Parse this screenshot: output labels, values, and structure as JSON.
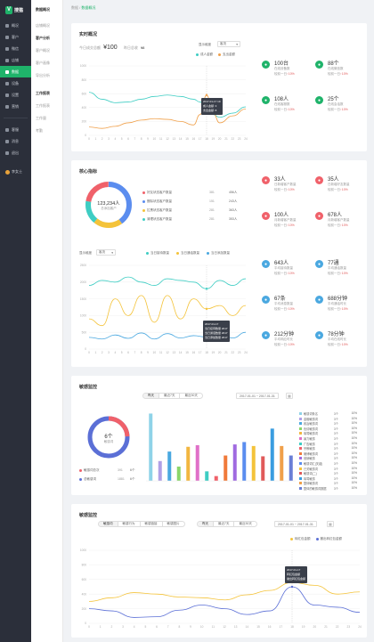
{
  "app": {
    "logo_letter": "V",
    "logo_text": "搜猫"
  },
  "sidebar": {
    "items": [
      {
        "label": "概况",
        "icon": "home-icon"
      },
      {
        "label": "客户",
        "icon": "user-icon"
      },
      {
        "label": "微信",
        "icon": "wechat-icon"
      },
      {
        "label": "店铺",
        "icon": "store-icon"
      },
      {
        "label": "数据",
        "icon": "chart-icon",
        "active": true
      },
      {
        "label": "设备",
        "icon": "device-icon"
      },
      {
        "label": "设置",
        "icon": "gear-icon"
      },
      {
        "label": "营销",
        "icon": "megaphone-icon"
      }
    ],
    "items2": [
      {
        "label": "客服",
        "icon": "headset-icon"
      },
      {
        "label": "消息",
        "icon": "message-icon"
      },
      {
        "label": "退出",
        "icon": "logout-icon"
      }
    ],
    "user": "李女士"
  },
  "subnav": {
    "header": "数据概况",
    "items": [
      {
        "label": "店铺概况"
      },
      {
        "label": "客户分析",
        "active": true
      },
      {
        "label": "客户概况"
      },
      {
        "label": "客户画像"
      },
      {
        "label": "导出分析"
      }
    ],
    "section2": "工作报表",
    "items2": [
      {
        "label": "工作报表"
      },
      {
        "label": "工作量"
      },
      {
        "label": "考勤"
      }
    ]
  },
  "breadcrumb": {
    "root": "数据",
    "sep": " / ",
    "current": "数据概况"
  },
  "realtime": {
    "title": "实时概况",
    "today_label": "今日成交总额",
    "today_value": "¥100",
    "orders_label": "昨日总收",
    "orders_value": "¥8",
    "select_label": "显示维度",
    "select_value": "客流",
    "legend": [
      "成人金额",
      "支出金额"
    ],
    "legend_colors": [
      "#3ecdc3",
      "#f0a04a"
    ],
    "tooltip": {
      "title": "2017-01-17 19",
      "l1": "成人金额: 3",
      "l2": "支出金额: 8"
    },
    "stats": [
      {
        "value": "100台",
        "label": "在线设备数",
        "change": "较前一日",
        "delta": "↑10%",
        "color": "#1fb36a",
        "icon": "device-icon"
      },
      {
        "value": "88个",
        "label": "在线微信数",
        "change": "较前一日",
        "delta": "↑10%",
        "color": "#1fb36a",
        "icon": "wechat-icon"
      },
      {
        "value": "108人",
        "label": "在线客服数",
        "change": "较前一日",
        "delta": "↑10%",
        "color": "#1fb36a",
        "icon": "headset-icon"
      },
      {
        "value": "25个",
        "label": "在线会话数",
        "change": "较前一日",
        "delta": "↑10%",
        "color": "#1fb36a",
        "icon": "message-icon"
      }
    ]
  },
  "core": {
    "title": "核心指标",
    "donut_value": "123,234人",
    "donut_label": "总添加客户",
    "rows": [
      {
        "name": "好友状态客户数量",
        "n": "381",
        "v": "456人",
        "color": "#f0616a"
      },
      {
        "name": "删除状态客户数量",
        "n": "151",
        "v": "243人",
        "color": "#5b8def"
      },
      {
        "name": "拉黑状态客户数量",
        "n": "281",
        "v": "363人",
        "color": "#f4c33a"
      },
      {
        "name": "清理状态客户数量",
        "n": "281",
        "v": "353人",
        "color": "#3ecdc3"
      }
    ],
    "stats": [
      {
        "value": "33人",
        "label": "日新增客户数量",
        "change": "较前一日",
        "delta": "↑10%",
        "color": "#f0616a",
        "icon": "user-icon"
      },
      {
        "value": "35人",
        "label": "日新增好友数量",
        "change": "较前一日",
        "delta": "↑10%",
        "color": "#f0616a",
        "icon": "user-icon"
      },
      {
        "value": "100人",
        "label": "月新增客户数量",
        "change": "较前一日",
        "delta": "↑10%",
        "color": "#f0616a",
        "icon": "calendar-icon"
      },
      {
        "value": "678人",
        "label": "月新增客户数量",
        "change": "较前一日",
        "delta": "↑10%",
        "color": "#f0616a",
        "icon": "calendar-icon"
      }
    ],
    "select_label": "显示维度",
    "select_value": "客流",
    "legend": [
      "当日接待数量",
      "当日通话数量",
      "当日添加数量"
    ],
    "legend_colors": [
      "#3ecdc3",
      "#f4c33a",
      "#4aa8e0"
    ],
    "tooltip": {
      "title": "2017-01-17",
      "l1": "当日接待数量",
      "l1v": "2017",
      "l2": "当日通话数量",
      "l2v": "2017",
      "l3": "当日添加数量",
      "l3v": "2017"
    },
    "stats2": [
      {
        "value": "643人",
        "label": "平均接待数量",
        "change": "较前一日",
        "delta": "↑10%",
        "color": "#4aa8e0",
        "icon": "chat-icon"
      },
      {
        "value": "77通",
        "label": "平均通话数量",
        "change": "较前一日",
        "delta": "↑10%",
        "color": "#4aa8e0",
        "icon": "phone-icon"
      },
      {
        "value": "67条",
        "label": "平均消息数量",
        "change": "较前一日",
        "delta": "↑10%",
        "color": "#4aa8e0",
        "icon": "mail-icon"
      },
      {
        "value": "688分钟",
        "label": "平均通话时长",
        "change": "较前一日",
        "delta": "↑10%",
        "color": "#4aa8e0",
        "icon": "user-icon"
      },
      {
        "value": "212分钟",
        "label": "平均响应时长",
        "change": "较前一日",
        "delta": "↑10%",
        "color": "#4aa8e0",
        "icon": "clock-icon"
      },
      {
        "value": "78分钟",
        "label": "平均在线时长",
        "change": "较前一日",
        "delta": "↑10%",
        "color": "#4aa8e0",
        "icon": "user-icon"
      }
    ]
  },
  "sensitive": {
    "title": "敏感监控",
    "tabs": [
      "昨天",
      "最近7天",
      "最近30天"
    ],
    "date_range": "2017-01-01 ~ 2017-01-31",
    "cal_icon": "calendar-icon",
    "donut_value": "6个",
    "donut_label": "敏感词",
    "legend": [
      {
        "name": "敏感词总次",
        "n": "391",
        "v": "6个",
        "color": "#f0616a"
      },
      {
        "name": "总敏感词",
        "n": "1881",
        "v": "6个",
        "color": "#5b6fd6"
      }
    ],
    "bars": [
      {
        "name": "敏感词条名",
        "a": "3个",
        "b": "10%",
        "color": "#8fd3e8"
      },
      {
        "name": "金融敏感词",
        "a": "3个",
        "b": "10%",
        "color": "#b0a0e6"
      },
      {
        "name": "政治敏感词",
        "a": "3个",
        "b": "10%",
        "color": "#4aa8e0"
      },
      {
        "name": "色情敏感词",
        "a": "3个",
        "b": "10%",
        "color": "#8ad66a"
      },
      {
        "name": "辱骂敏感词",
        "a": "3个",
        "b": "10%",
        "color": "#f2b640"
      },
      {
        "name": "暴力敏感",
        "a": "3个",
        "b": "10%",
        "color": "#e070c8"
      },
      {
        "name": "广告敏感",
        "a": "3个",
        "b": "10%",
        "color": "#3ecdc3"
      },
      {
        "name": "宗教敏感",
        "a": "3个",
        "b": "10%",
        "color": "#f0616a"
      },
      {
        "name": "赌博敏感词",
        "a": "3个",
        "b": "10%",
        "color": "#f07a3a"
      },
      {
        "name": "营销敏感",
        "a": "3个",
        "b": "10%",
        "color": "#a06ae0"
      },
      {
        "name": "敏感词汇(关键)",
        "a": "3个",
        "b": "10%",
        "color": "#5b8def"
      },
      {
        "name": "已关敏感词",
        "a": "3个",
        "b": "10%",
        "color": "#f4c33a"
      },
      {
        "name": "敏感词(二)",
        "a": "3个",
        "b": "10%",
        "color": "#e05a5a"
      },
      {
        "name": "辱骂敏感",
        "a": "3个",
        "b": "10%",
        "color": "#3a9de0"
      },
      {
        "name": "整体敏感词",
        "a": "3个",
        "b": "10%",
        "color": "#f0a04a"
      },
      {
        "name": "整体的敏感词数据",
        "a": "3个",
        "b": "10%",
        "color": "#6a7fd6"
      }
    ]
  },
  "sensitive2": {
    "title": "敏感监控",
    "tabs1": [
      "敏感词",
      "敏感行为",
      "敏感链接",
      "敏感图片"
    ],
    "tabs2": [
      "昨天",
      "最近7天",
      "最近30天"
    ],
    "date_range": "2017-01-01 ~ 2017-01-31",
    "legend": [
      "转红包金额",
      "撤出转红包金额"
    ],
    "legend_colors": [
      "#f4c33a",
      "#5b6fd6"
    ],
    "tooltip": {
      "title": "2017-01-17",
      "l1": "转红包金额",
      "l2": "撤出转红包金额"
    }
  },
  "axis": {
    "xticks": [
      "0",
      "1",
      "2",
      "3",
      "4",
      "5",
      "6",
      "7",
      "8",
      "9",
      "10",
      "11",
      "12",
      "13",
      "14",
      "15",
      "16",
      "17",
      "18",
      "19",
      "20",
      "21",
      "22",
      "23",
      "24"
    ],
    "y1": [
      "0",
      "200",
      "400",
      "600",
      "800",
      "1000"
    ],
    "y2": [
      "0",
      "500",
      "1000",
      "1500",
      "2000",
      "2500"
    ],
    "y3": [
      "0",
      "200",
      "400",
      "600",
      "800",
      "1000"
    ]
  },
  "chart_data": [
    {
      "type": "line",
      "title": "实时概况",
      "x": [
        0,
        2,
        4,
        6,
        8,
        10,
        12,
        14,
        16,
        17,
        18,
        19,
        20,
        22,
        24
      ],
      "series": [
        {
          "name": "成人金额",
          "values": [
            620,
            520,
            470,
            480,
            520,
            560,
            580,
            560,
            520,
            480,
            380,
            300,
            260,
            320,
            410
          ]
        },
        {
          "name": "支出金额",
          "values": [
            120,
            100,
            130,
            180,
            220,
            240,
            230,
            200,
            150,
            300,
            580,
            320,
            180,
            280,
            380
          ]
        }
      ],
      "ylim": [
        0,
        1000
      ]
    },
    {
      "type": "line",
      "title": "核心指标",
      "x": [
        0,
        2,
        4,
        6,
        8,
        10,
        12,
        14,
        16,
        18,
        20,
        22,
        24
      ],
      "series": [
        {
          "name": "当日接待数量",
          "values": [
            1900,
            2050,
            2000,
            2150,
            2000,
            1900,
            2100,
            2050,
            2000,
            1800,
            2050,
            1900,
            2100
          ]
        },
        {
          "name": "当日通话数量",
          "values": [
            900,
            700,
            1500,
            1000,
            1600,
            800,
            1600,
            900,
            1500,
            1200,
            1300,
            1000,
            1300
          ]
        },
        {
          "name": "当日添加数量",
          "values": [
            350,
            300,
            420,
            320,
            480,
            300,
            460,
            330,
            400,
            360,
            500,
            330,
            500
          ]
        }
      ],
      "ylim": [
        0,
        2500
      ]
    },
    {
      "type": "bar",
      "title": "敏感监控",
      "values": [
        850,
        250,
        370,
        180,
        430,
        450,
        120,
        60,
        320,
        460,
        490,
        440,
        310,
        660,
        440,
        320
      ]
    },
    {
      "type": "line",
      "title": "敏感监控",
      "x": [
        0,
        2,
        4,
        6,
        8,
        10,
        12,
        14,
        16,
        18,
        20,
        22,
        24
      ],
      "series": [
        {
          "name": "转红包金额",
          "values": [
            300,
            350,
            420,
            400,
            360,
            350,
            320,
            390,
            450,
            560,
            520,
            400,
            430
          ]
        },
        {
          "name": "撤出转红包金额",
          "values": [
            200,
            170,
            80,
            90,
            180,
            250,
            200,
            120,
            170,
            500,
            250,
            220,
            150
          ]
        }
      ],
      "ylim": [
        0,
        1000
      ]
    }
  ]
}
